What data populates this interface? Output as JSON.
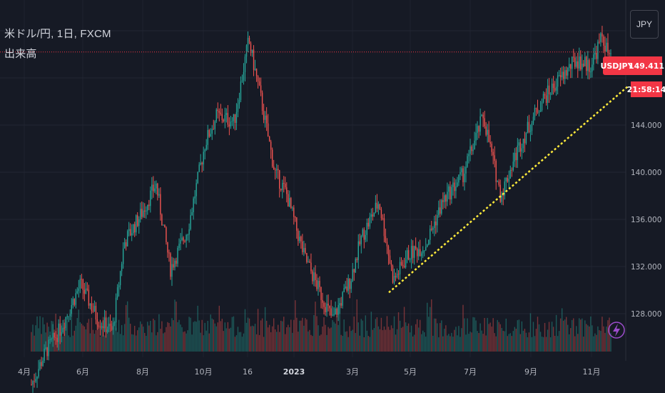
{
  "header": {
    "title": "米ドル/円, 1日, FXCM",
    "subtitle": "出来高"
  },
  "currency_button": "JPY",
  "symbol_badge": "USDJPY",
  "last_price": "149.411",
  "countdown": "21:58:14",
  "icons": {
    "flash": "lightning-bolt-icon"
  },
  "colors": {
    "background": "#161a25",
    "up": "#26a69a",
    "down": "#ef5350",
    "price_line": "#f23645",
    "trendline": "#ffeb3b",
    "flash": "#9c4dcc"
  },
  "chart_data": {
    "type": "candlestick",
    "symbol": "USDJPY",
    "interval": "1日",
    "source": "FXCM",
    "y_ticks": [
      128.0,
      132.0,
      136.0,
      140.0,
      144.0
    ],
    "y_tick_labels": [
      "128.000",
      "132.000",
      "136.000",
      "140.000",
      "144.000"
    ],
    "ylim": [
      124.9,
      152.0
    ],
    "x_ticks": [
      {
        "label": "4月",
        "bold": false
      },
      {
        "label": "6月",
        "bold": false
      },
      {
        "label": "8月",
        "bold": false
      },
      {
        "label": "10月",
        "bold": false
      },
      {
        "label": "16",
        "bold": false
      },
      {
        "label": "2023",
        "bold": true
      },
      {
        "label": "3月",
        "bold": false
      },
      {
        "label": "5月",
        "bold": false
      },
      {
        "label": "7月",
        "bold": false
      },
      {
        "label": "9月",
        "bold": false
      },
      {
        "label": "11月",
        "bold": false
      }
    ],
    "price_path": [
      {
        "t": 0,
        "p": 122.0
      },
      {
        "t": 0.025,
        "p": 124.8
      },
      {
        "t": 0.05,
        "p": 126.7
      },
      {
        "t": 0.085,
        "p": 130.5
      },
      {
        "t": 0.115,
        "p": 127.5
      },
      {
        "t": 0.14,
        "p": 126.5
      },
      {
        "t": 0.16,
        "p": 134.0
      },
      {
        "t": 0.19,
        "p": 136.5
      },
      {
        "t": 0.215,
        "p": 139.0
      },
      {
        "t": 0.24,
        "p": 131.8
      },
      {
        "t": 0.27,
        "p": 135.2
      },
      {
        "t": 0.3,
        "p": 142.5
      },
      {
        "t": 0.32,
        "p": 144.8
      },
      {
        "t": 0.35,
        "p": 144.3
      },
      {
        "t": 0.375,
        "p": 151.2
      },
      {
        "t": 0.395,
        "p": 146.5
      },
      {
        "t": 0.42,
        "p": 140.0
      },
      {
        "t": 0.44,
        "p": 138.2
      },
      {
        "t": 0.47,
        "p": 133.0
      },
      {
        "t": 0.5,
        "p": 129.6
      },
      {
        "t": 0.52,
        "p": 127.5
      },
      {
        "t": 0.55,
        "p": 130.8
      },
      {
        "t": 0.57,
        "p": 134.5
      },
      {
        "t": 0.6,
        "p": 137.5
      },
      {
        "t": 0.625,
        "p": 130.8
      },
      {
        "t": 0.65,
        "p": 133.0
      },
      {
        "t": 0.68,
        "p": 133.8
      },
      {
        "t": 0.71,
        "p": 137.5
      },
      {
        "t": 0.745,
        "p": 139.8
      },
      {
        "t": 0.78,
        "p": 144.8
      },
      {
        "t": 0.81,
        "p": 138.0
      },
      {
        "t": 0.84,
        "p": 142.0
      },
      {
        "t": 0.88,
        "p": 146.0
      },
      {
        "t": 0.91,
        "p": 147.8
      },
      {
        "t": 0.94,
        "p": 149.5
      },
      {
        "t": 0.965,
        "p": 149.0
      },
      {
        "t": 0.985,
        "p": 151.5
      },
      {
        "t": 1.0,
        "p": 149.411
      }
    ],
    "last_price": 149.411,
    "horizontal_line": 150.2,
    "trendline": {
      "from": {
        "t": 0.617,
        "p": 129.8
      },
      "to": {
        "t": 1.03,
        "p": 147.3
      }
    },
    "volume": "shown",
    "grid": true
  }
}
